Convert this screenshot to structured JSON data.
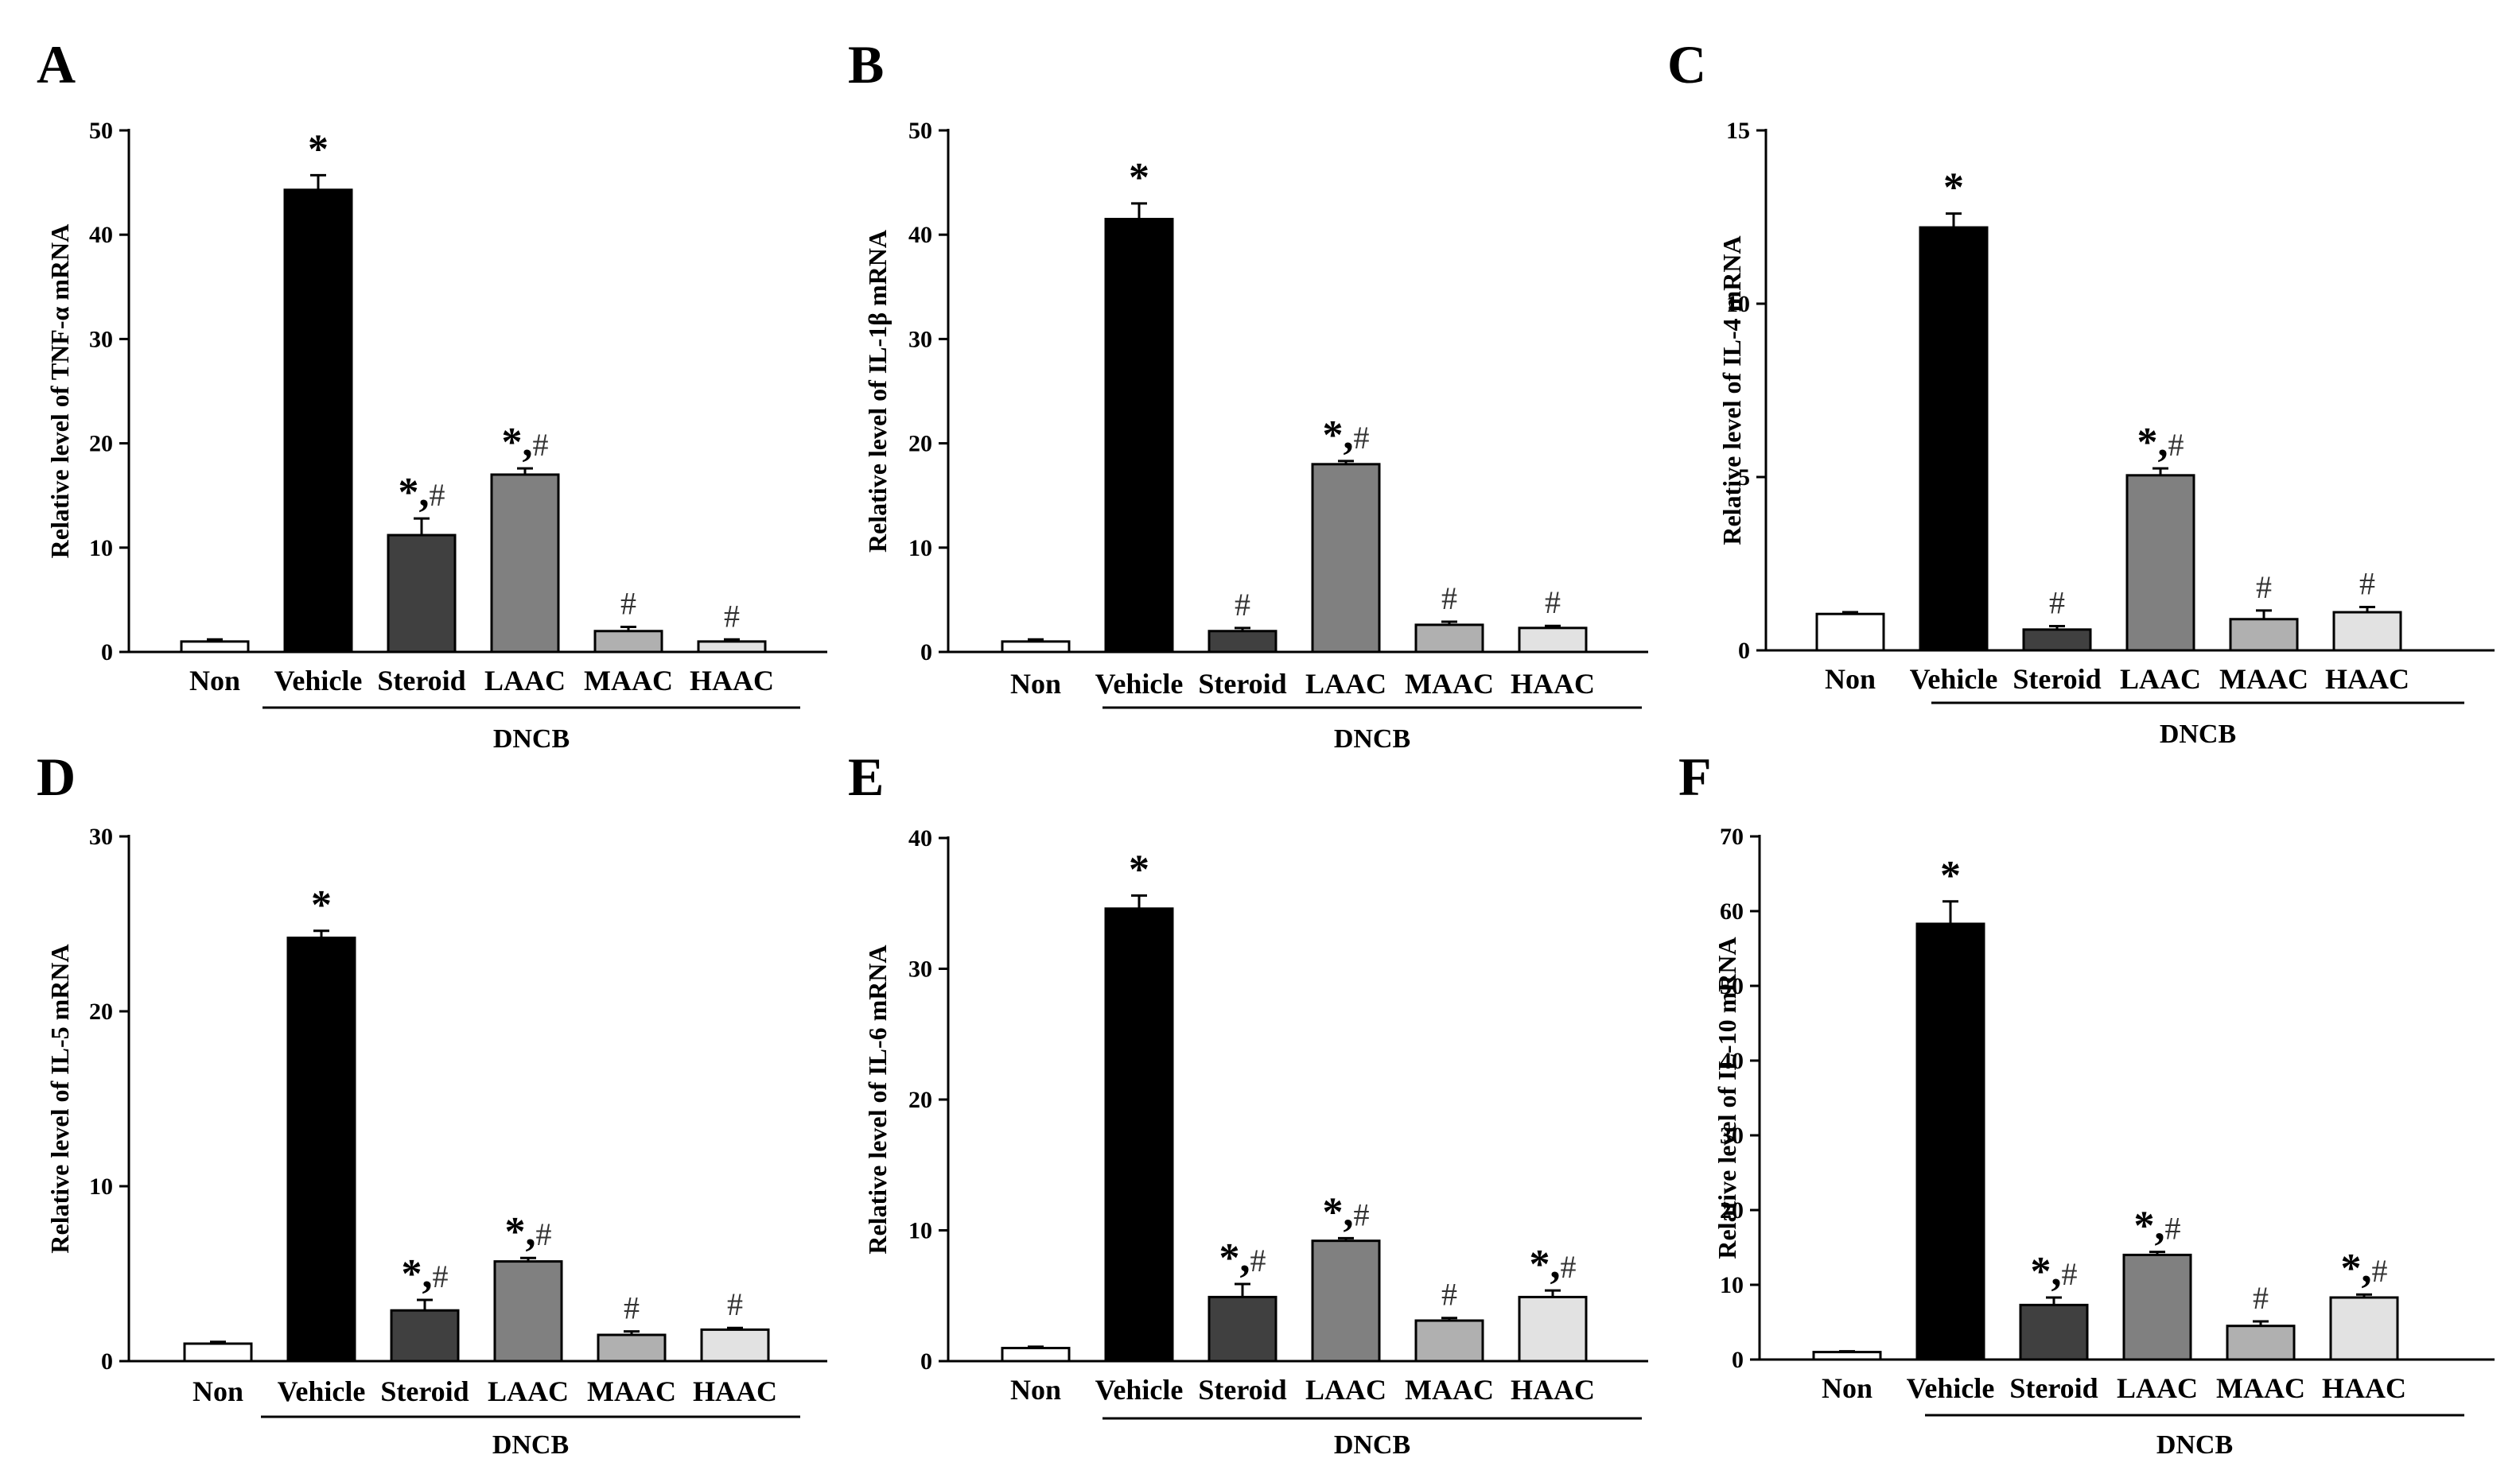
{
  "chart_data": [
    {
      "type": "bar",
      "panel": "A",
      "ylabel": "Relative level of TNF-α mRNA",
      "ylim": [
        0,
        50
      ],
      "yticks": [
        0,
        10,
        20,
        30,
        40,
        50
      ],
      "categories": [
        "Non",
        "Vehicle",
        "Steroid",
        "LAAC",
        "MAAC",
        "HAAC"
      ],
      "values": [
        1.0,
        44.3,
        11.2,
        17.0,
        2.0,
        1.0
      ],
      "errors": [
        0.2,
        1.4,
        1.6,
        0.6,
        0.4,
        0.2
      ],
      "significance": [
        "",
        "*",
        "*,#",
        "*,#",
        "#",
        "#"
      ],
      "group_label": "DNCB"
    },
    {
      "type": "bar",
      "panel": "B",
      "ylabel": "Relative level of IL-1β mRNA",
      "ylim": [
        0,
        50
      ],
      "yticks": [
        0,
        10,
        20,
        30,
        40,
        50
      ],
      "categories": [
        "Non",
        "Vehicle",
        "Steroid",
        "LAAC",
        "MAAC",
        "HAAC"
      ],
      "values": [
        1.0,
        41.5,
        2.0,
        18.0,
        2.6,
        2.3
      ],
      "errors": [
        0.2,
        1.5,
        0.3,
        0.3,
        0.3,
        0.2
      ],
      "significance": [
        "",
        "*",
        "#",
        "*,#",
        "#",
        "#"
      ],
      "group_label": "DNCB"
    },
    {
      "type": "bar",
      "panel": "C",
      "ylabel": "Relative level of IL-4 mRNA",
      "ylim": [
        0,
        15
      ],
      "yticks": [
        0,
        5,
        10,
        15
      ],
      "categories": [
        "Non",
        "Vehicle",
        "Steroid",
        "LAAC",
        "MAAC",
        "HAAC"
      ],
      "values": [
        1.05,
        12.2,
        0.6,
        5.05,
        0.9,
        1.1
      ],
      "errors": [
        0.05,
        0.4,
        0.1,
        0.2,
        0.25,
        0.15
      ],
      "significance": [
        "",
        "*",
        "#",
        "*,#",
        "#",
        "#"
      ],
      "group_label": "DNCB"
    },
    {
      "type": "bar",
      "panel": "D",
      "ylabel": "Relative level of IL-5 mRNA",
      "ylim": [
        0,
        30
      ],
      "yticks": [
        0,
        10,
        20,
        30
      ],
      "categories": [
        "Non",
        "Vehicle",
        "Steroid",
        "LAAC",
        "MAAC",
        "HAAC"
      ],
      "values": [
        1.0,
        24.2,
        2.9,
        5.7,
        1.5,
        1.8
      ],
      "errors": [
        0.1,
        0.4,
        0.6,
        0.2,
        0.2,
        0.1
      ],
      "significance": [
        "",
        "*",
        "*,#",
        "*,#",
        "#",
        "#"
      ],
      "group_label": "DNCB"
    },
    {
      "type": "bar",
      "panel": "E",
      "ylabel": "Relative level of IL-6 mRNA",
      "ylim": [
        0,
        40
      ],
      "yticks": [
        0,
        10,
        20,
        30,
        40
      ],
      "categories": [
        "Non",
        "Vehicle",
        "Steroid",
        "LAAC",
        "MAAC",
        "HAAC"
      ],
      "values": [
        1.0,
        34.6,
        4.9,
        9.2,
        3.1,
        4.9
      ],
      "errors": [
        0.1,
        1.0,
        1.0,
        0.2,
        0.2,
        0.5
      ],
      "significance": [
        "",
        "*",
        "*,#",
        "*,#",
        "#",
        "*,#"
      ],
      "group_label": "DNCB"
    },
    {
      "type": "bar",
      "panel": "F",
      "ylabel": "Relative level of IL-10 mRNA",
      "ylim": [
        0,
        70
      ],
      "yticks": [
        0,
        10,
        20,
        30,
        40,
        50,
        60,
        70
      ],
      "categories": [
        "Non",
        "Vehicle",
        "Steroid",
        "LAAC",
        "MAAC",
        "HAAC"
      ],
      "values": [
        1.0,
        58.3,
        7.3,
        14.0,
        4.5,
        8.3
      ],
      "errors": [
        0.1,
        3.0,
        1.0,
        0.4,
        0.6,
        0.4
      ],
      "significance": [
        "",
        "*",
        "*,#",
        "*,#",
        "#",
        "*,#"
      ],
      "group_label": "DNCB"
    }
  ],
  "colors": {
    "bar_fills": [
      "#ffffff",
      "#000000",
      "#404040",
      "#808080",
      "#b0b0b0",
      "#e2e2e2"
    ],
    "outline": "#000000",
    "hash_color": "#333333"
  }
}
